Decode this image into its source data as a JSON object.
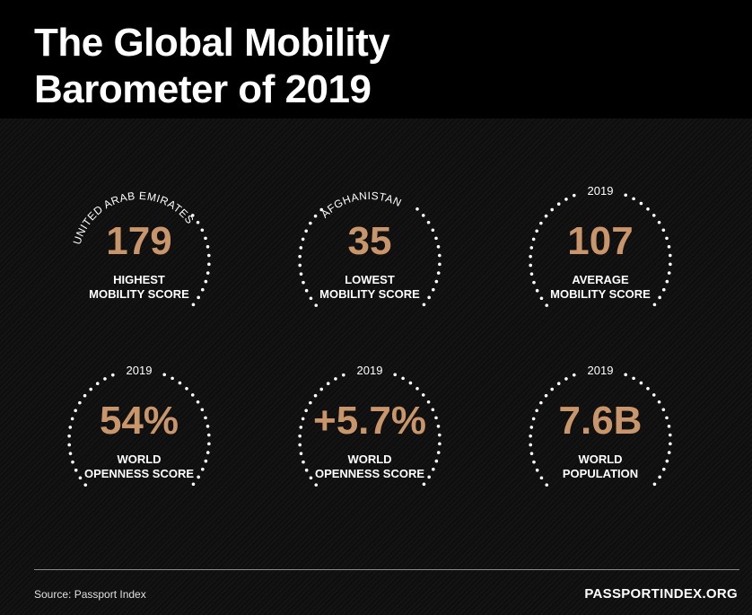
{
  "title": {
    "line1_prefix": "The ",
    "line1_highlight": "Global Mobility",
    "line2": "Barometer of 2019"
  },
  "stats": [
    {
      "tag": "UNITED ARAB EMIRATES",
      "value": "179",
      "label1": "HIGHEST",
      "label2": "MOBILITY SCORE"
    },
    {
      "tag": "AFGHANISTAN",
      "value": "35",
      "label1": "LOWEST",
      "label2": "MOBILITY SCORE"
    },
    {
      "tag": "2019",
      "value": "107",
      "label1": "AVERAGE",
      "label2": "MOBILITY SCORE"
    },
    {
      "tag": "2019",
      "value": "54%",
      "label1": "WORLD",
      "label2": "OPENNESS SCORE"
    },
    {
      "tag": "2019",
      "value": "+5.7%",
      "label1": "WORLD",
      "label2": "OPENNESS SCORE"
    },
    {
      "tag": "2019",
      "value": "7.6B",
      "label1": "WORLD",
      "label2": "POPULATION"
    }
  ],
  "footer": {
    "source": "Source: Passport Index",
    "site": "PASSPORTINDEX.ORG"
  },
  "colors": {
    "accent": "#c9956b",
    "background": "#0b0b0b"
  }
}
